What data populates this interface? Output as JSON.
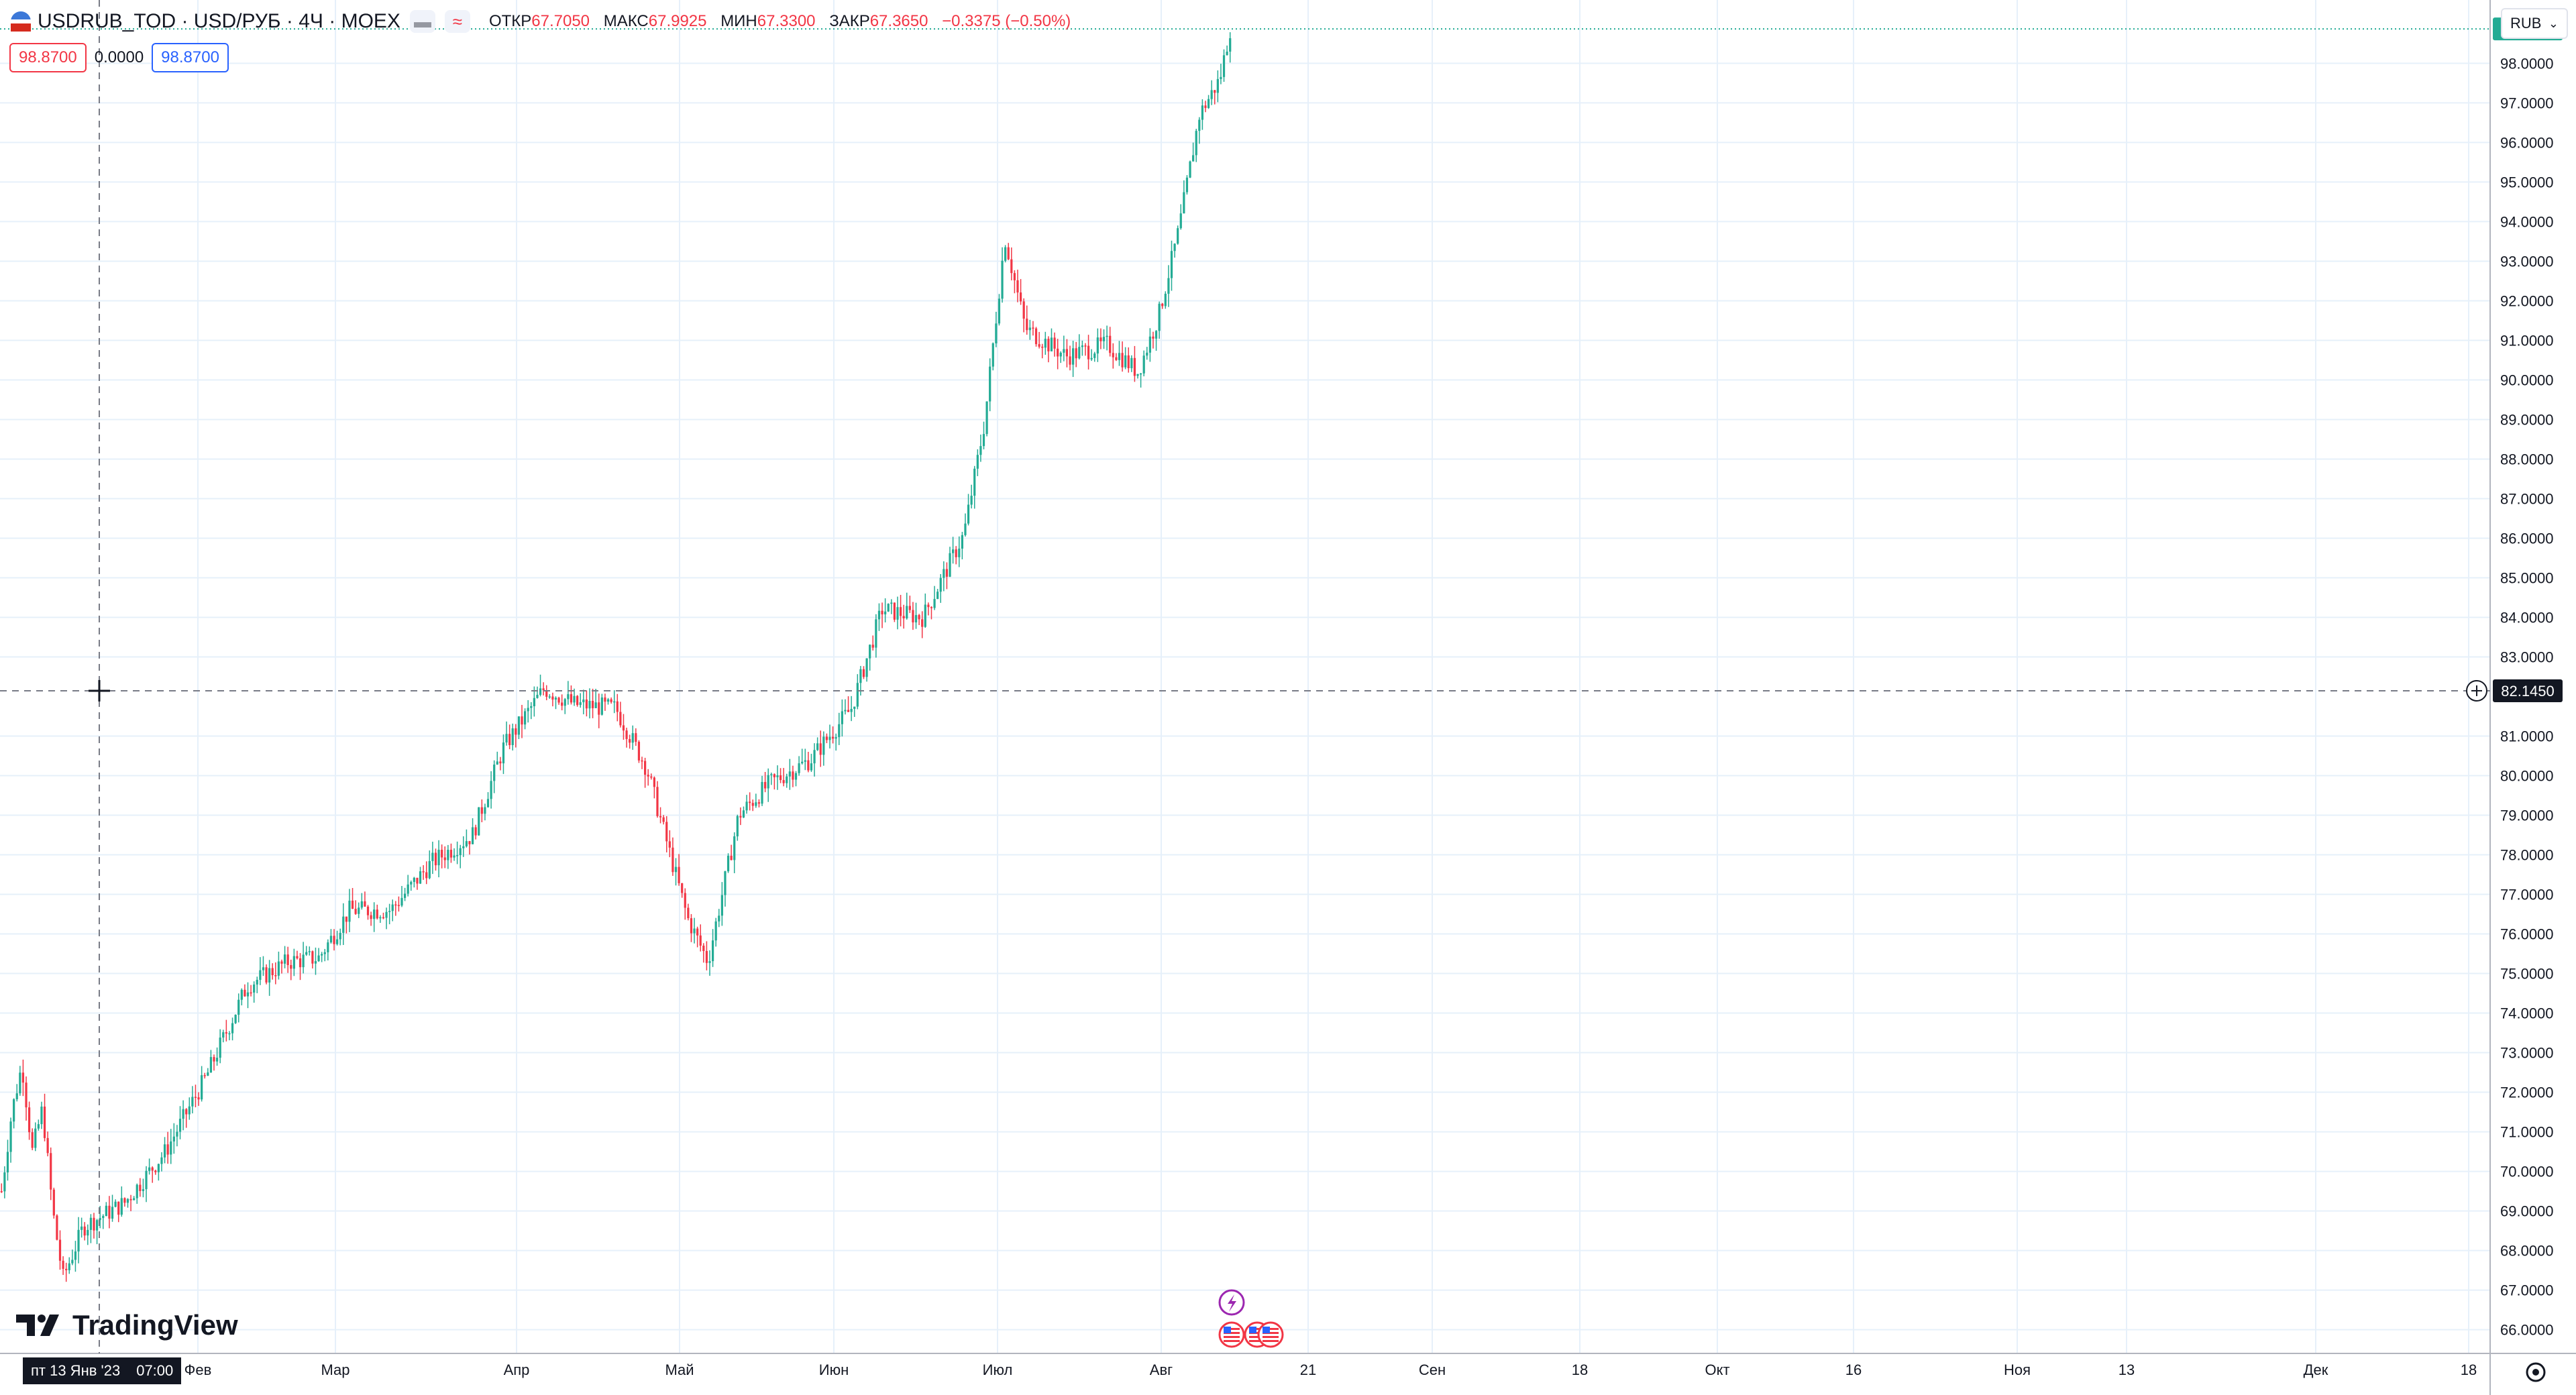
{
  "legend": {
    "symbol": "USDRUB_TOD · USD/РУБ · 4Ч · MOEX",
    "open_label": "ОТКР",
    "open": "67.7050",
    "high_label": "МАКС",
    "high": "67.9925",
    "low_label": "МИН",
    "low": "67.3300",
    "close_label": "ЗАКР",
    "close": "67.3650",
    "change": "−0.3375 (−0.50%)",
    "pill1_icon": "minus-icon",
    "pill2_icon": "compare-icon"
  },
  "values_row": {
    "price_red": "98.8700",
    "change": "0.0000",
    "price_blue": "98.8700"
  },
  "currency_dropdown": {
    "value": "RUB"
  },
  "price_axis": {
    "ticks": [
      "98.0000",
      "97.0000",
      "96.0000",
      "95.0000",
      "94.0000",
      "93.0000",
      "92.0000",
      "91.0000",
      "90.0000",
      "89.0000",
      "88.0000",
      "87.0000",
      "86.0000",
      "85.0000",
      "84.0000",
      "83.0000",
      "81.0000",
      "80.0000",
      "79.0000",
      "78.0000",
      "77.0000",
      "76.0000",
      "75.0000",
      "74.0000",
      "73.0000",
      "72.0000",
      "71.0000",
      "70.0000",
      "69.0000",
      "68.0000",
      "67.0000",
      "66.0000"
    ],
    "last_price": "98.8700",
    "crosshair_price": "82.1450"
  },
  "time_axis": {
    "labels": [
      "Фев",
      "Мар",
      "Апр",
      "Май",
      "Июн",
      "Июл",
      "Авг",
      "21",
      "Сен",
      "18",
      "Окт",
      "16",
      "Ноя",
      "13",
      "Дек",
      "18"
    ],
    "crosshair_date": "пт 13 Янв '23",
    "crosshair_time": "07:00"
  },
  "branding": {
    "name": "TradingView"
  },
  "colors": {
    "up": "#22ab94",
    "down": "#f23645",
    "grid": "#e6f0fa",
    "last_price_bg": "#22ab94",
    "crosshair_bg": "#131722"
  },
  "chart_data": {
    "type": "candlestick",
    "symbol": "USDRUB_TOD",
    "timeframe": "4Ч",
    "ylim": [
      65.4,
      99.6
    ],
    "grid": true,
    "anchors": [
      {
        "t": 0,
        "p": 69.5
      },
      {
        "t": 1,
        "p": 71.5
      },
      {
        "t": 2,
        "p": 72.7
      },
      {
        "t": 3,
        "p": 70.5
      },
      {
        "t": 4,
        "p": 71.6
      },
      {
        "t": 5,
        "p": 69.0
      },
      {
        "t": 6,
        "p": 67.3
      },
      {
        "t": 8,
        "p": 68.6
      },
      {
        "t": 12,
        "p": 69.2
      },
      {
        "t": 16,
        "p": 70.5
      },
      {
        "t": 20,
        "p": 72.4
      },
      {
        "t": 24,
        "p": 74.7
      },
      {
        "t": 28,
        "p": 75.3
      },
      {
        "t": 31,
        "p": 75.4
      },
      {
        "t": 34,
        "p": 76.6
      },
      {
        "t": 38,
        "p": 76.6
      },
      {
        "t": 42,
        "p": 77.8
      },
      {
        "t": 46,
        "p": 78.5
      },
      {
        "t": 49,
        "p": 80.7
      },
      {
        "t": 53,
        "p": 82.2
      },
      {
        "t": 56,
        "p": 81.8
      },
      {
        "t": 60,
        "p": 81.7
      },
      {
        "t": 63,
        "p": 80.2
      },
      {
        "t": 67,
        "p": 76.4
      },
      {
        "t": 69,
        "p": 75.3
      },
      {
        "t": 72,
        "p": 79.0
      },
      {
        "t": 75,
        "p": 79.8
      },
      {
        "t": 79,
        "p": 80.4
      },
      {
        "t": 83,
        "p": 81.7
      },
      {
        "t": 86,
        "p": 84.2
      },
      {
        "t": 90,
        "p": 84.0
      },
      {
        "t": 94,
        "p": 86.1
      },
      {
        "t": 96,
        "p": 88.9
      },
      {
        "t": 98,
        "p": 93.6
      },
      {
        "t": 100,
        "p": 91.3
      },
      {
        "t": 104,
        "p": 90.6
      },
      {
        "t": 108,
        "p": 90.9
      },
      {
        "t": 111,
        "p": 90.2
      },
      {
        "t": 113,
        "p": 91.6
      },
      {
        "t": 115,
        "p": 93.8
      },
      {
        "t": 117,
        "p": 96.7
      },
      {
        "t": 119,
        "p": 97.6
      },
      {
        "t": 120,
        "p": 98.87
      }
    ],
    "total_bars": 120
  }
}
